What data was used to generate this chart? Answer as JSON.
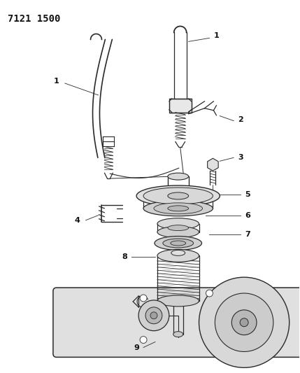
{
  "title": "7121 1500",
  "bg_color": "#ffffff",
  "line_color": "#2a2a2a",
  "label_color": "#111111",
  "title_fontsize": 10,
  "label_fontsize": 8,
  "figsize": [
    4.29,
    5.33
  ],
  "dpi": 100
}
